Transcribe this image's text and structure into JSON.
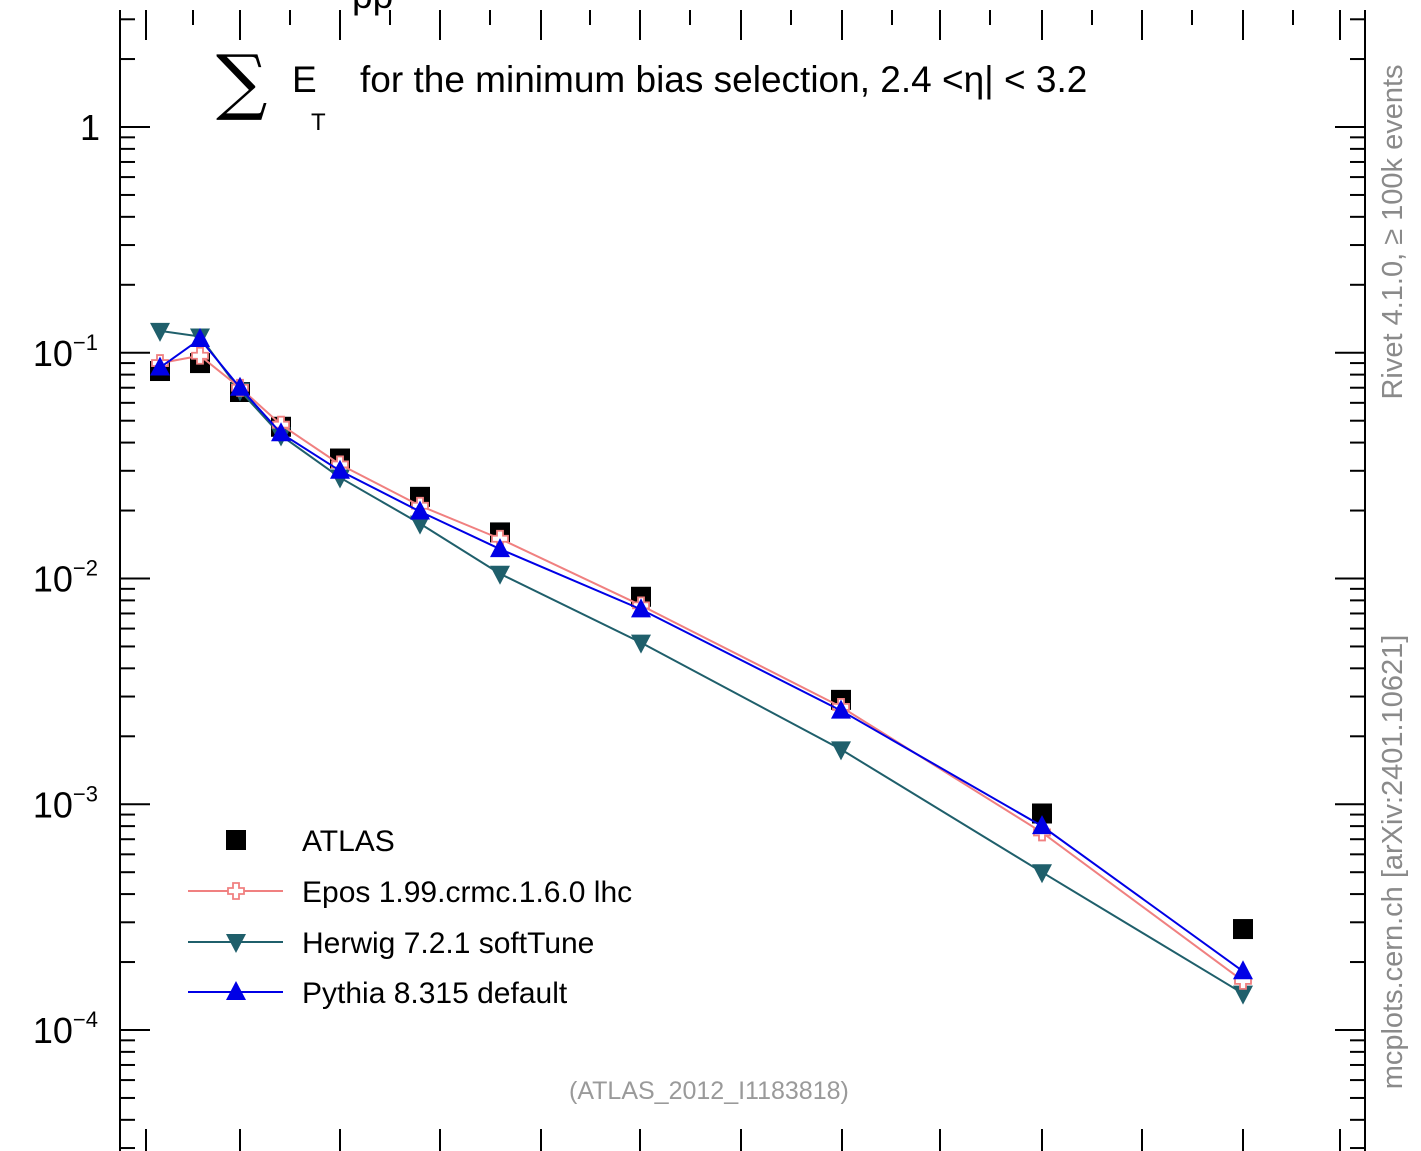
{
  "chart_data": {
    "type": "line",
    "title": "for the minimum bias selection, 2.4 <η| < 3.2",
    "title_symbol": "∑",
    "title_var": "E",
    "title_var_sub": "T",
    "yscale": "log",
    "ylim": [
      3e-05,
      3.5
    ],
    "xlim": [
      0,
      100
    ],
    "y_tick_labels": [
      {
        "value": 1,
        "base": "1",
        "exp": ""
      },
      {
        "value": 0.1,
        "base": "10",
        "exp": "−1"
      },
      {
        "value": 0.01,
        "base": "10",
        "exp": "−2"
      },
      {
        "value": 0.001,
        "base": "10",
        "exp": "−3"
      },
      {
        "value": 0.0001,
        "base": "10",
        "exp": "−4"
      }
    ],
    "x_major_ticks": [
      2,
      12,
      22,
      32,
      42,
      52,
      62,
      72,
      82,
      92
    ],
    "x_minor_ticks": [
      7,
      17,
      27,
      37,
      47,
      57,
      67,
      77,
      87,
      97
    ],
    "legend_position": "bottom-left",
    "series": [
      {
        "name": "ATLAS",
        "color": "#000000",
        "marker": "square",
        "line": false,
        "x": [
          4,
          8,
          12,
          16,
          22,
          30,
          38,
          52,
          72,
          92,
          112
        ],
        "y": [
          0.083,
          0.09,
          0.067,
          0.047,
          0.034,
          0.023,
          0.016,
          0.0083,
          0.0029,
          0.00091,
          0.00028
        ]
      },
      {
        "name": "Epos 1.99.crmc.1.6.0 lhc",
        "color": "#f08080",
        "marker": "open-cross",
        "line": true,
        "x": [
          4,
          8,
          12,
          16,
          22,
          30,
          38,
          52,
          72,
          92,
          112
        ],
        "y": [
          0.09,
          0.097,
          0.07,
          0.048,
          0.032,
          0.021,
          0.015,
          0.0076,
          0.0027,
          0.00075,
          0.000165
        ]
      },
      {
        "name": "Herwig 7.2.1 softTune",
        "color": "#1f5f6b",
        "marker": "triangle-down",
        "line": true,
        "x": [
          4,
          8,
          12,
          16,
          22,
          30,
          38,
          52,
          72,
          92,
          112
        ],
        "y": [
          0.125,
          0.118,
          0.068,
          0.043,
          0.028,
          0.0175,
          0.0105,
          0.0052,
          0.00175,
          0.0005,
          0.000145
        ]
      },
      {
        "name": "Pythia 8.315 default",
        "color": "#0000e6",
        "marker": "triangle-up",
        "line": true,
        "x": [
          4,
          8,
          12,
          16,
          22,
          30,
          38,
          52,
          72,
          92,
          112
        ],
        "y": [
          0.086,
          0.115,
          0.07,
          0.044,
          0.03,
          0.0198,
          0.0135,
          0.0073,
          0.0026,
          0.0008,
          0.000182
        ]
      }
    ],
    "side_label": "mcplots.cern.ch [arXiv:2401.10621]",
    "version_label": "Rivet 4.1.0, ≥ 100k events",
    "analysis_label": "(ATLAS_2012_I1183818)",
    "top_partial_text": "pp"
  }
}
